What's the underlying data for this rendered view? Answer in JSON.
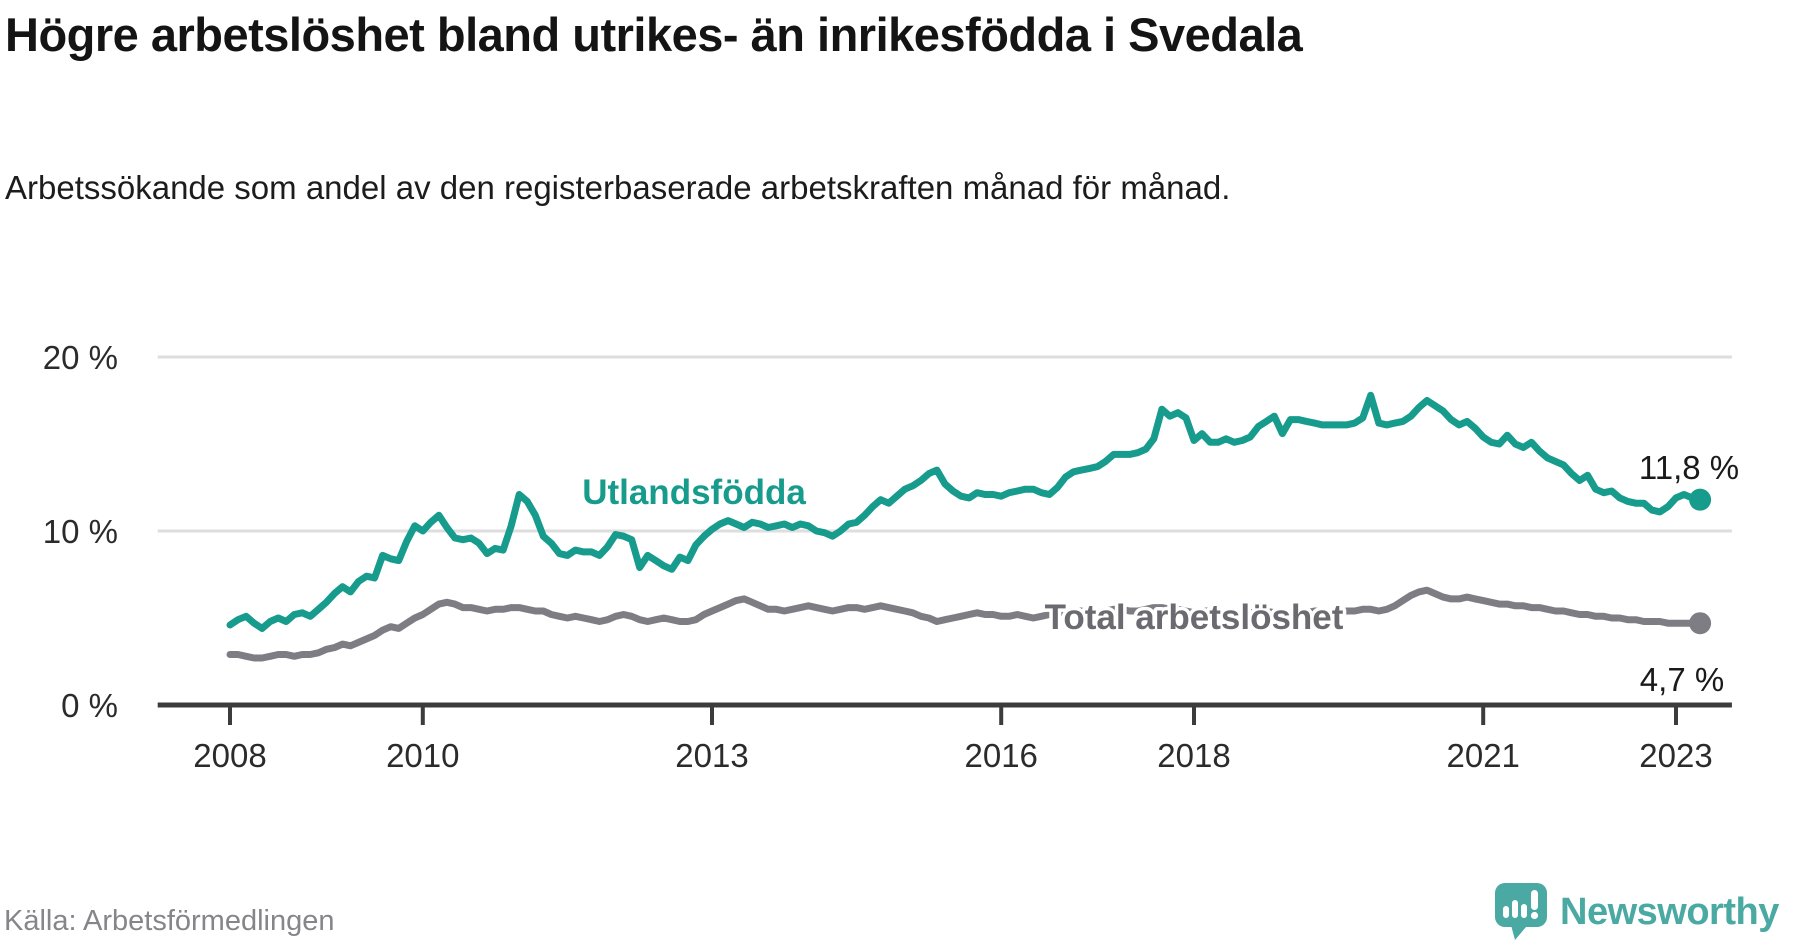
{
  "header": {
    "title": "Högre arbetslöshet bland utrikes- än inrikesfödda i Svedala",
    "subtitle": "Arbetssökande som andel av den registerbaserade arbetskraften månad för månad."
  },
  "footer": {
    "source": "Källa: Arbetsförmedlingen",
    "brand": "Newsworthy"
  },
  "colors": {
    "foreign_born_line": "#169b8d",
    "total_line": "#7e7d83",
    "total_label": "#6b6a70",
    "value_label": "#1a1a1a",
    "grid": "#dedede",
    "axis": "#3c3c3c",
    "brand_teal": "#4aa9a2"
  },
  "chart_data": {
    "type": "line",
    "title": "Högre arbetslöshet bland utrikes- än inrikesfödda i Svedala",
    "subtitle": "Arbetssökande som andel av den registerbaserade arbetskraften månad för månad.",
    "unit": "%",
    "x_start_year": 2008,
    "x_step_months": 1,
    "xlim_years": [
      2007.25,
      2023.58
    ],
    "ylim": [
      0,
      21.5
    ],
    "grid": "horizontal",
    "legend_position": "inline-labels",
    "yticks": [
      {
        "value": 0,
        "label": "0 %"
      },
      {
        "value": 10,
        "label": "10 %"
      },
      {
        "value": 20,
        "label": "20 %"
      }
    ],
    "xticks": [
      {
        "year": 2008,
        "label": "2008"
      },
      {
        "year": 2010,
        "label": "2010"
      },
      {
        "year": 2013,
        "label": "2013"
      },
      {
        "year": 2016,
        "label": "2016"
      },
      {
        "year": 2018,
        "label": "2018"
      },
      {
        "year": 2021,
        "label": "2021"
      },
      {
        "year": 2023,
        "label": "2023"
      }
    ],
    "series": [
      {
        "name": "Utlandsfödda",
        "color": "#169b8d",
        "end_label": "11,8 %",
        "values": [
          4.6,
          4.9,
          5.1,
          4.7,
          4.4,
          4.8,
          5.0,
          4.8,
          5.2,
          5.3,
          5.1,
          5.5,
          5.9,
          6.4,
          6.8,
          6.5,
          7.1,
          7.4,
          7.3,
          8.6,
          8.4,
          8.3,
          9.4,
          10.3,
          10.0,
          10.5,
          10.9,
          10.2,
          9.6,
          9.5,
          9.6,
          9.3,
          8.7,
          9.0,
          8.9,
          10.3,
          12.1,
          11.7,
          10.9,
          9.7,
          9.3,
          8.7,
          8.6,
          8.9,
          8.8,
          8.8,
          8.6,
          9.1,
          9.8,
          9.7,
          9.5,
          7.9,
          8.6,
          8.3,
          8.0,
          7.8,
          8.5,
          8.3,
          9.2,
          9.7,
          10.1,
          10.4,
          10.6,
          10.4,
          10.2,
          10.5,
          10.4,
          10.2,
          10.3,
          10.4,
          10.2,
          10.4,
          10.3,
          10.0,
          9.9,
          9.7,
          10.0,
          10.4,
          10.5,
          10.9,
          11.4,
          11.8,
          11.6,
          12.0,
          12.4,
          12.6,
          12.9,
          13.3,
          13.5,
          12.7,
          12.3,
          12.0,
          11.9,
          12.2,
          12.1,
          12.1,
          12.0,
          12.2,
          12.3,
          12.4,
          12.4,
          12.2,
          12.1,
          12.5,
          13.1,
          13.4,
          13.5,
          13.6,
          13.7,
          14.0,
          14.4,
          14.4,
          14.4,
          14.5,
          14.7,
          15.3,
          17.0,
          16.6,
          16.8,
          16.5,
          15.2,
          15.6,
          15.1,
          15.1,
          15.3,
          15.1,
          15.2,
          15.4,
          16.0,
          16.3,
          16.6,
          15.6,
          16.4,
          16.4,
          16.3,
          16.2,
          16.1,
          16.1,
          16.1,
          16.1,
          16.2,
          16.5,
          17.8,
          16.2,
          16.1,
          16.2,
          16.3,
          16.6,
          17.1,
          17.5,
          17.2,
          16.9,
          16.4,
          16.1,
          16.3,
          15.9,
          15.4,
          15.1,
          15.0,
          15.5,
          15.0,
          14.8,
          15.1,
          14.6,
          14.2,
          14.0,
          13.8,
          13.3,
          12.9,
          13.2,
          12.4,
          12.2,
          12.3,
          11.9,
          11.7,
          11.6,
          11.6,
          11.2,
          11.1,
          11.4,
          11.9,
          12.1,
          11.9,
          11.8
        ]
      },
      {
        "name": "Total arbetslöshet",
        "color": "#7e7d83",
        "end_label": "4,7 %",
        "values": [
          2.9,
          2.9,
          2.8,
          2.7,
          2.7,
          2.8,
          2.9,
          2.9,
          2.8,
          2.9,
          2.9,
          3.0,
          3.2,
          3.3,
          3.5,
          3.4,
          3.6,
          3.8,
          4.0,
          4.3,
          4.5,
          4.4,
          4.7,
          5.0,
          5.2,
          5.5,
          5.8,
          5.9,
          5.8,
          5.6,
          5.6,
          5.5,
          5.4,
          5.5,
          5.5,
          5.6,
          5.6,
          5.5,
          5.4,
          5.4,
          5.2,
          5.1,
          5.0,
          5.1,
          5.0,
          4.9,
          4.8,
          4.9,
          5.1,
          5.2,
          5.1,
          4.9,
          4.8,
          4.9,
          5.0,
          4.9,
          4.8,
          4.8,
          4.9,
          5.2,
          5.4,
          5.6,
          5.8,
          6.0,
          6.1,
          5.9,
          5.7,
          5.5,
          5.5,
          5.4,
          5.5,
          5.6,
          5.7,
          5.6,
          5.5,
          5.4,
          5.5,
          5.6,
          5.6,
          5.5,
          5.6,
          5.7,
          5.6,
          5.5,
          5.4,
          5.3,
          5.1,
          5.0,
          4.8,
          4.9,
          5.0,
          5.1,
          5.2,
          5.3,
          5.2,
          5.2,
          5.1,
          5.1,
          5.2,
          5.1,
          5.0,
          5.1,
          5.2,
          5.3,
          5.3,
          5.4,
          5.4,
          5.3,
          5.3,
          5.4,
          5.5,
          5.5,
          5.4,
          5.4,
          5.5,
          5.6,
          5.6,
          5.5,
          5.5,
          5.4,
          5.3,
          5.4,
          5.4,
          5.3,
          5.2,
          5.2,
          5.3,
          5.3,
          5.4,
          5.4,
          5.3,
          5.2,
          5.2,
          5.3,
          5.3,
          5.4,
          5.4,
          5.3,
          5.3,
          5.4,
          5.4,
          5.5,
          5.5,
          5.4,
          5.5,
          5.7,
          6.0,
          6.3,
          6.5,
          6.6,
          6.4,
          6.2,
          6.1,
          6.1,
          6.2,
          6.1,
          6.0,
          5.9,
          5.8,
          5.8,
          5.7,
          5.7,
          5.6,
          5.6,
          5.5,
          5.4,
          5.4,
          5.3,
          5.2,
          5.2,
          5.1,
          5.1,
          5.0,
          5.0,
          4.9,
          4.9,
          4.8,
          4.8,
          4.8,
          4.7,
          4.7,
          4.7,
          4.7,
          4.7
        ]
      }
    ]
  }
}
